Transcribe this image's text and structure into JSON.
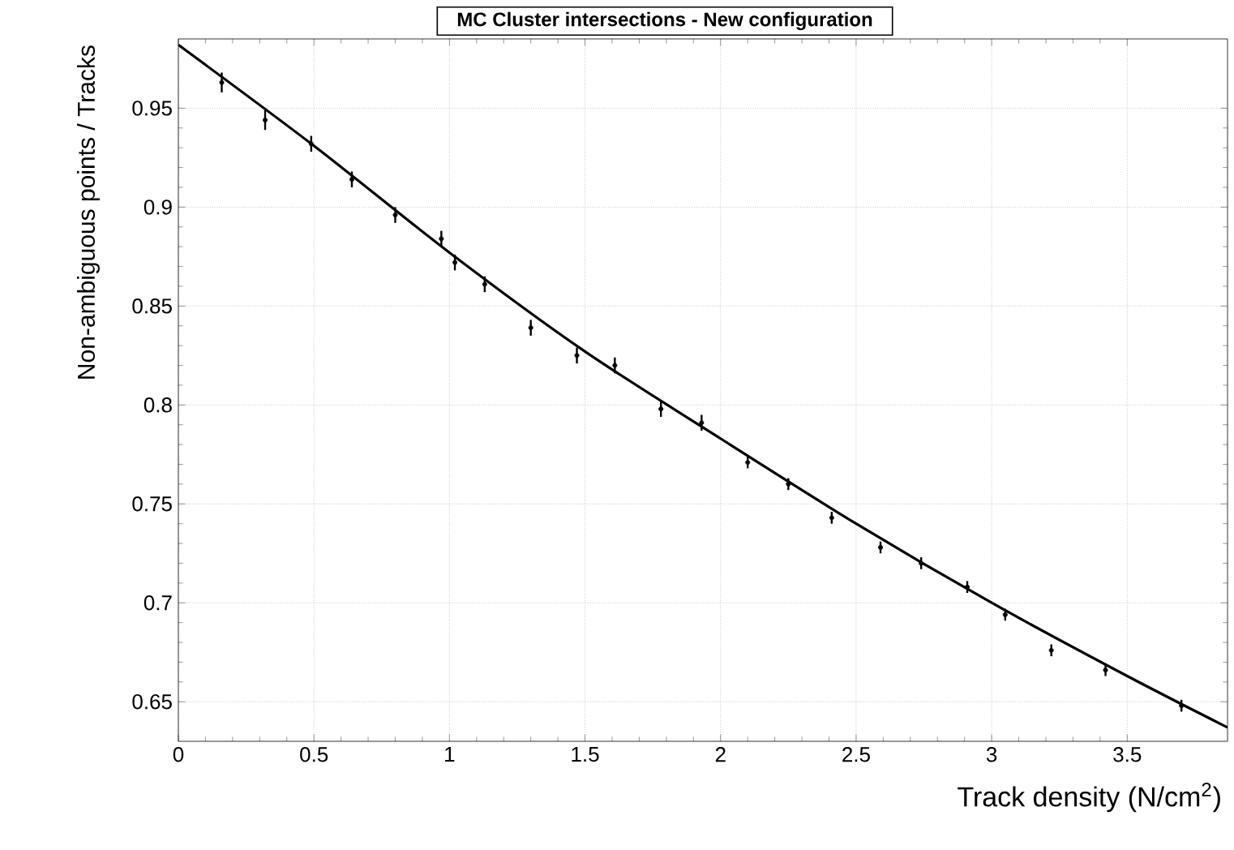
{
  "chart_data": {
    "type": "scatter",
    "title": "MC Cluster intersections - New configuration",
    "xlabel": "Track density (N/cm$^{2}$)",
    "ylabel": "Non-ambiguous points / Tracks",
    "xlim": [
      0,
      3.87
    ],
    "ylim": [
      0.63,
      0.985
    ],
    "xticks": [
      0,
      0.5,
      1,
      1.5,
      2,
      2.5,
      3,
      3.5
    ],
    "yticks": [
      0.65,
      0.7,
      0.75,
      0.8,
      0.85,
      0.9,
      0.95
    ],
    "grid": true,
    "series": [
      {
        "color": "#000000",
        "x": [
          0.16,
          0.32,
          0.49,
          0.64,
          0.8,
          0.97,
          1.02,
          1.13,
          1.3,
          1.47,
          1.61,
          1.78,
          1.93,
          2.1,
          2.25,
          2.41,
          2.59,
          2.74,
          2.91,
          3.05,
          3.22,
          3.42,
          3.7
        ],
        "values": [
          0.963,
          0.944,
          0.932,
          0.914,
          0.896,
          0.884,
          0.872,
          0.861,
          0.839,
          0.825,
          0.82,
          0.798,
          0.791,
          0.771,
          0.76,
          0.743,
          0.728,
          0.72,
          0.708,
          0.694,
          0.676,
          0.666,
          0.648
        ],
        "errors": [
          0.005,
          0.005,
          0.004,
          0.004,
          0.004,
          0.004,
          0.004,
          0.004,
          0.004,
          0.004,
          0.004,
          0.004,
          0.004,
          0.003,
          0.003,
          0.003,
          0.003,
          0.003,
          0.003,
          0.003,
          0.003,
          0.003,
          0.003
        ]
      },
      {
        "type": "line",
        "color": "#000000",
        "x": [
          0,
          0.5,
          1,
          1.5,
          2,
          2.5,
          3,
          3.5,
          3.87
        ],
        "values": [
          0.982,
          0.931,
          0.877,
          0.827,
          0.783,
          0.74,
          0.7,
          0.663,
          0.637
        ]
      }
    ]
  }
}
